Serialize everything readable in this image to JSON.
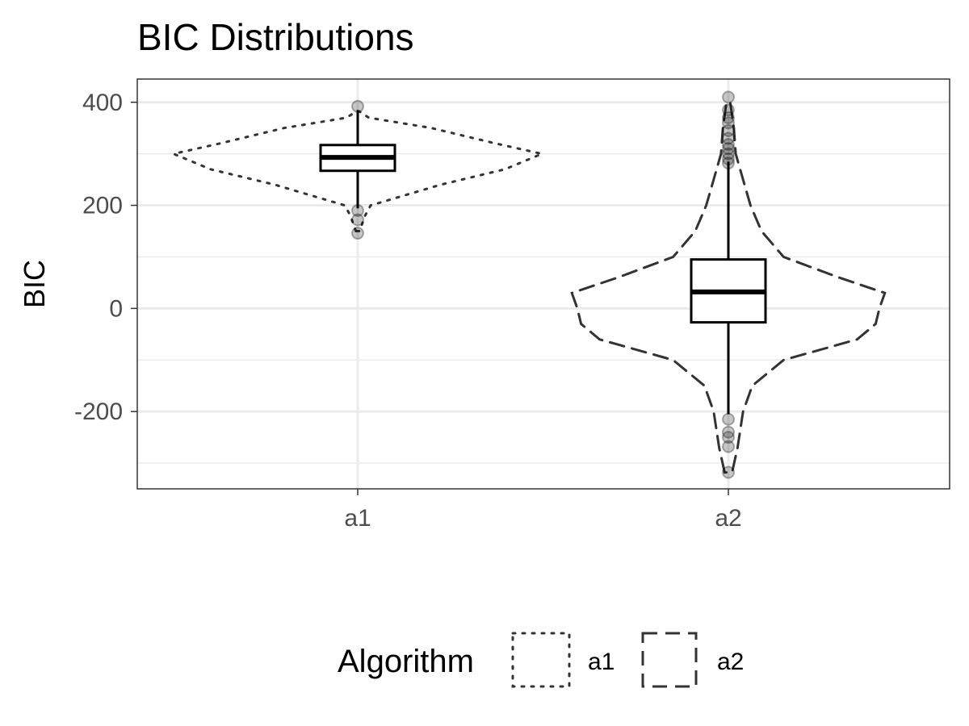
{
  "chart_data": {
    "type": "violin",
    "title": "BIC Distributions",
    "xlabel": "",
    "ylabel": "BIC",
    "categories": [
      "a1",
      "a2"
    ],
    "y_ticks": [
      -200,
      0,
      200,
      400
    ],
    "y_tick_labels": [
      "-200",
      "0",
      "200",
      "400"
    ],
    "ylim": [
      -350,
      445
    ],
    "grid": true,
    "legend": {
      "title": "Algorithm",
      "placement": "bottom",
      "entries": [
        {
          "label": "a1",
          "linetype": "dotted"
        },
        {
          "label": "a2",
          "linetype": "dashed"
        }
      ]
    },
    "series": [
      {
        "category": "a1",
        "linetype": "dotted",
        "violin": {
          "min": 150,
          "max": 382,
          "profile": [
            [
              150,
              0.01
            ],
            [
              180,
              0.04
            ],
            [
              200,
              0.07
            ],
            [
              240,
              0.45
            ],
            [
              270,
              0.8
            ],
            [
              300,
              1.0
            ],
            [
              320,
              0.75
            ],
            [
              350,
              0.4
            ],
            [
              370,
              0.06
            ],
            [
              382,
              0.01
            ]
          ]
        },
        "box": {
          "q1": 267,
          "median": 293,
          "q3": 317,
          "whisker_low": 194,
          "whisker_high": 385
        },
        "outliers": [
          392,
          190,
          172,
          146
        ]
      },
      {
        "category": "a2",
        "linetype": "dashed",
        "violin": {
          "min": -318,
          "max": 400,
          "profile": [
            [
              -318,
              0.02
            ],
            [
              -270,
              0.05
            ],
            [
              -200,
              0.08
            ],
            [
              -150,
              0.13
            ],
            [
              -100,
              0.3
            ],
            [
              -60,
              0.7
            ],
            [
              -30,
              0.8
            ],
            [
              0,
              0.82
            ],
            [
              30,
              0.85
            ],
            [
              60,
              0.6
            ],
            [
              100,
              0.3
            ],
            [
              150,
              0.18
            ],
            [
              200,
              0.12
            ],
            [
              250,
              0.08
            ],
            [
              300,
              0.04
            ],
            [
              350,
              0.03
            ],
            [
              400,
              0.01
            ]
          ]
        },
        "box": {
          "q1": -27,
          "median": 32,
          "q3": 95,
          "whisker_low": -205,
          "whisker_high": 285
        },
        "outliers": [
          410,
          385,
          370,
          360,
          345,
          330,
          318,
          310,
          300,
          290,
          282,
          -215,
          -240,
          -250,
          -268,
          -318
        ]
      }
    ]
  }
}
